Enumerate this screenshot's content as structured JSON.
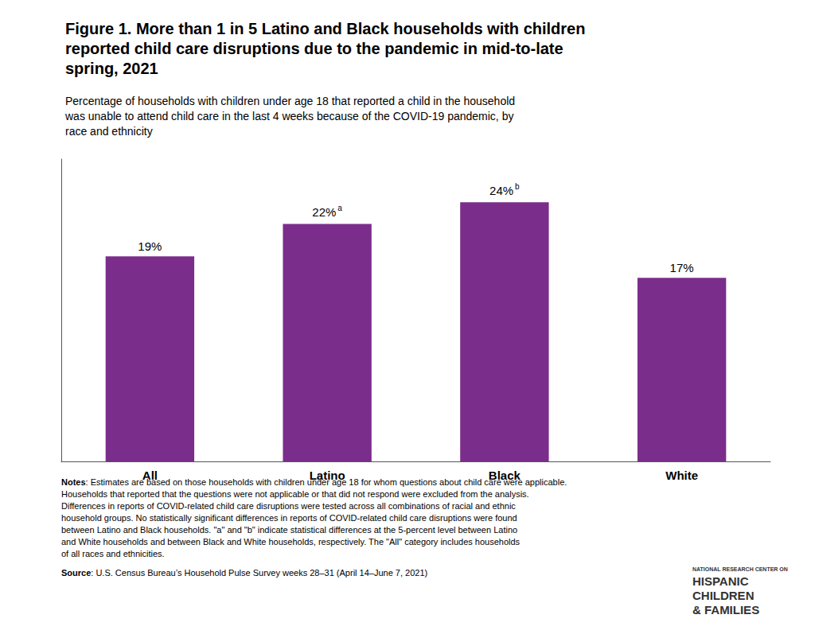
{
  "chart_data": {
    "type": "bar",
    "title": "Figure 1. More than 1 in 5 Latino and Black households with children\nreported child care disruptions due to the pandemic in mid-to-late\nspring, 2021",
    "subtitle": "Percentage of households with children under age 18 that reported a child in the household\nwas unable to attend child care in the last 4 weeks because of the COVID-19 pandemic, by\nrace and ethnicity",
    "categories": [
      "All",
      "Latino",
      "Black",
      "White"
    ],
    "values": [
      19,
      22,
      24,
      17
    ],
    "value_labels": [
      "19%",
      "22%",
      "24%",
      "17%"
    ],
    "color": "#7B2D8B",
    "ylim": [
      0,
      28
    ],
    "grid": false,
    "data_labels": true,
    "tick_labels": "x",
    "annotations": [
      {
        "category": "Latino",
        "text": "a"
      },
      {
        "category": "Black",
        "text": "b"
      }
    ],
    "notes_label": "Notes",
    "notes": ": Estimates are based on those households with children under age 18 for whom questions about child care were applicable.\nHouseholds that reported that the questions were not applicable or that did not respond were excluded from the analysis.\nDifferences in reports of COVID-related child care disruptions were tested across all combinations of racial and ethnic\nhousehold groups. No statistically significant differences in reports of COVID-related child care disruptions were found\nbetween Latino and Black households. \"a\" and \"b\" indicate statistical differences at the 5-percent level between Latino\nand White households and between Black and White households, respectively. The \"All\" category includes households\nof all races and ethnicities.",
    "source_label": "Source",
    "source": ": U.S. Census Bureau’s Household Pulse Survey weeks 28–31 (April 14–June 7, 2021)",
    "logo_text": [
      "NATIONAL RESEARCH CENTER ON",
      "HISPANIC",
      "CHILDREN",
      "& FAMILIES"
    ]
  }
}
